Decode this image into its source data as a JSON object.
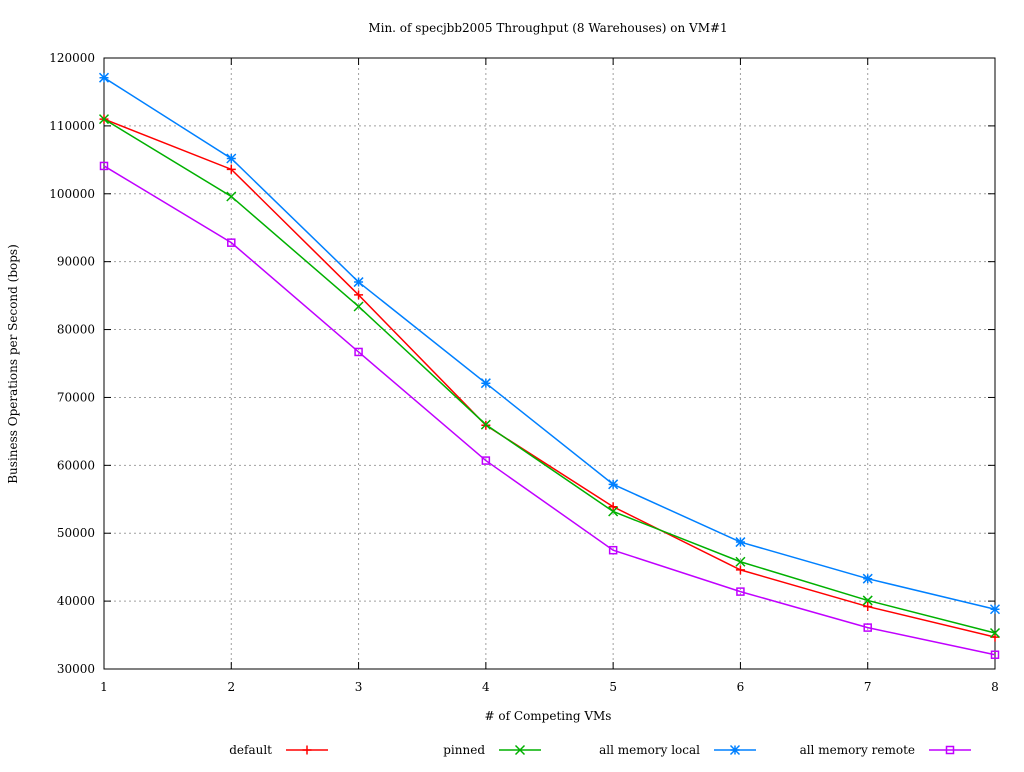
{
  "chart_data": {
    "type": "line",
    "title": "Min. of specjbb2005 Throughput (8 Warehouses) on VM#1",
    "xlabel": "# of Competing VMs",
    "ylabel": "Business Operations per Second (bops)",
    "xlim": [
      1,
      8
    ],
    "ylim": [
      30000,
      120000
    ],
    "xticks": [
      1,
      2,
      3,
      4,
      5,
      6,
      7,
      8
    ],
    "yticks": [
      30000,
      40000,
      50000,
      60000,
      70000,
      80000,
      90000,
      100000,
      110000,
      120000
    ],
    "grid": true,
    "legend_placement": "bottom",
    "x": [
      1,
      2,
      3,
      4,
      5,
      6,
      7,
      8
    ],
    "series": [
      {
        "name": "default",
        "color": "#ff0000",
        "marker": "plus",
        "values": [
          111000,
          103600,
          85100,
          65900,
          53900,
          44600,
          39200,
          34700
        ]
      },
      {
        "name": "pinned",
        "color": "#00b000",
        "marker": "cross",
        "values": [
          111000,
          99600,
          83400,
          66000,
          53200,
          45800,
          40100,
          35300
        ]
      },
      {
        "name": "all memory local",
        "color": "#0080ff",
        "marker": "star",
        "values": [
          117100,
          105200,
          87000,
          72100,
          57200,
          48700,
          43300,
          38800
        ]
      },
      {
        "name": "all memory remote",
        "color": "#c000ff",
        "marker": "square",
        "values": [
          104100,
          92800,
          76700,
          60700,
          47500,
          41400,
          36100,
          32100
        ]
      }
    ]
  }
}
